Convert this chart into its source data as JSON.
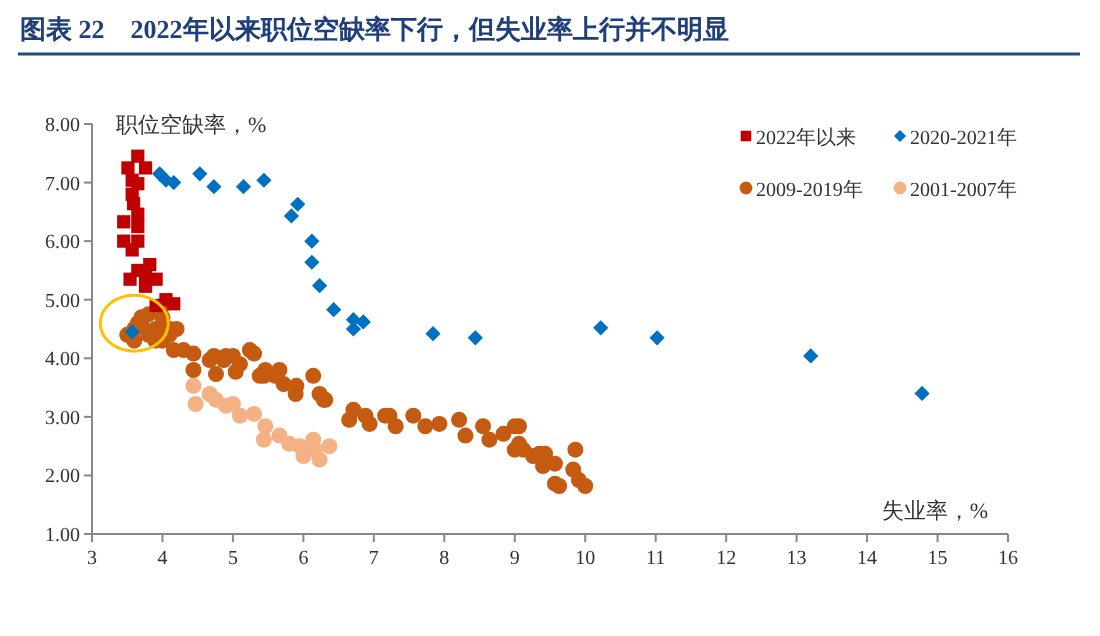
{
  "chart_data": {
    "type": "scatter",
    "title": "图表 22　2022年以来职位空缺率下行，但失业率上行并不明显",
    "xlabel": "失业率，%",
    "ylabel": "职位空缺率，%",
    "legend": "top right",
    "grid": false,
    "xlim": [
      3,
      16
    ],
    "xticks": [
      3,
      4,
      5,
      6,
      7,
      8,
      9,
      10,
      11,
      12,
      13,
      14,
      15,
      16
    ],
    "ylim": [
      1,
      8
    ],
    "yticks": [
      {
        "value": 1,
        "label": "1.00"
      },
      {
        "value": 2,
        "label": "2.00"
      },
      {
        "value": 3,
        "label": "3.00"
      },
      {
        "value": 4,
        "label": "4.00"
      },
      {
        "value": 5,
        "label": "5.00"
      },
      {
        "value": 6,
        "label": "6.00"
      },
      {
        "value": 7,
        "label": "7.00"
      },
      {
        "value": 8,
        "label": "8.00"
      }
    ],
    "series": [
      {
        "name": "2022年以来",
        "color": "#c00000",
        "marker": "square",
        "x": [
          3.65,
          3.51,
          3.76,
          3.57,
          3.65,
          3.57,
          3.59,
          3.65,
          3.45,
          3.65,
          3.45,
          3.65,
          3.57,
          3.82,
          3.65,
          3.76,
          3.54,
          3.91,
          3.76,
          4.05,
          4.16,
          3.91
        ],
        "values": [
          7.45,
          7.25,
          7.25,
          7.04,
          6.98,
          6.8,
          6.64,
          6.46,
          6.33,
          6.25,
          6.0,
          6.0,
          5.85,
          5.6,
          5.5,
          5.4,
          5.35,
          5.35,
          5.23,
          5.0,
          4.93,
          4.9
        ]
      },
      {
        "name": "2020-2021年",
        "color": "#0070c0",
        "marker": "diamond",
        "x": [
          3.57,
          3.96,
          4.05,
          4.16,
          4.53,
          4.73,
          5.15,
          5.44,
          5.83,
          5.92,
          6.12,
          6.12,
          6.23,
          6.43,
          6.71,
          6.85,
          6.71,
          7.84,
          8.44,
          10.22,
          11.02,
          13.2,
          14.78
        ],
        "values": [
          4.45,
          7.15,
          7.04,
          7.0,
          7.15,
          6.93,
          6.93,
          7.04,
          6.43,
          6.63,
          6.0,
          5.64,
          5.24,
          4.83,
          4.66,
          4.62,
          4.5,
          4.42,
          4.35,
          4.52,
          4.35,
          4.04,
          3.4
        ]
      },
      {
        "name": "2009-2019年",
        "color": "#c55a11",
        "marker": "circle",
        "x": [
          3.5,
          3.6,
          3.65,
          3.7,
          3.8,
          4.0,
          4.0,
          3.9,
          3.8,
          3.7,
          4.1,
          3.6,
          4.0,
          3.9,
          4.2,
          4.1,
          4.16,
          4.3,
          4.44,
          4.44,
          4.73,
          4.87,
          5.0,
          5.1,
          5.3,
          4.76,
          5.04,
          5.38,
          5.46,
          5.6,
          5.72,
          5.9,
          6.14,
          6.23,
          6.31,
          6.71,
          6.88,
          7.16,
          4.67,
          4.9,
          5.24,
          5.44,
          5.66,
          5.89,
          6.29,
          6.65,
          6.94,
          7.22,
          7.31,
          7.56,
          7.73,
          7.93,
          8.21,
          8.3,
          8.55,
          8.64,
          8.84,
          9.06,
          9.12,
          9.26,
          9.43,
          9.57,
          9.0,
          9.06,
          9.0,
          9.35,
          9.4,
          9.57,
          9.63,
          9.86,
          9.83,
          9.91,
          10.0
        ],
        "values": [
          4.4,
          4.5,
          4.6,
          4.7,
          4.75,
          4.9,
          4.7,
          4.5,
          4.4,
          4.6,
          4.5,
          4.3,
          4.3,
          4.3,
          4.5,
          4.4,
          4.14,
          4.14,
          4.08,
          3.8,
          4.04,
          3.97,
          4.04,
          3.9,
          4.08,
          3.73,
          3.77,
          3.7,
          3.8,
          3.7,
          3.56,
          3.53,
          3.7,
          3.39,
          3.29,
          3.12,
          3.02,
          3.02,
          3.97,
          4.04,
          4.14,
          3.7,
          3.8,
          3.39,
          3.29,
          2.95,
          2.88,
          3.02,
          2.84,
          3.02,
          2.84,
          2.88,
          2.95,
          2.68,
          2.84,
          2.61,
          2.71,
          2.84,
          2.44,
          2.33,
          2.37,
          1.86,
          2.84,
          2.54,
          2.44,
          2.37,
          2.16,
          2.2,
          1.82,
          2.44,
          2.1,
          1.92,
          1.82
        ]
      },
      {
        "name": "2001-2007年",
        "color": "#f4b183",
        "marker": "circle",
        "x": [
          4.44,
          4.47,
          4.67,
          4.76,
          4.9,
          5.0,
          5.1,
          5.3,
          5.46,
          5.44,
          5.66,
          5.8,
          5.95,
          6.0,
          6.17,
          6.23,
          6.37,
          6.14
        ],
        "values": [
          3.53,
          3.22,
          3.39,
          3.29,
          3.19,
          3.22,
          3.02,
          3.05,
          2.84,
          2.61,
          2.68,
          2.54,
          2.5,
          2.33,
          2.44,
          2.27,
          2.5,
          2.61
        ]
      }
    ]
  }
}
